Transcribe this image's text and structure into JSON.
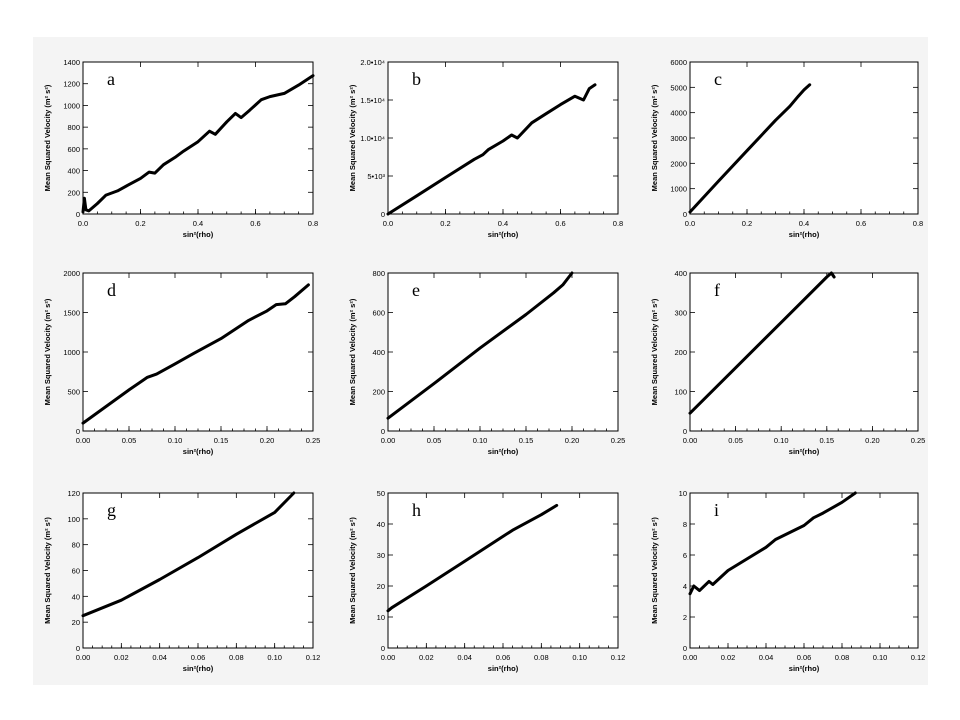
{
  "chart_data": [
    {
      "type": "line",
      "panel_label": "a",
      "xlabel": "sin²(rho)",
      "ylabel": "Mean Squared Velocity (m² s²)",
      "xlim": [
        0,
        0.8
      ],
      "ylim": [
        0,
        1450
      ],
      "xticks": [
        "0.0",
        "0.2",
        "0.4",
        "0.6",
        "0.8"
      ],
      "yticks": [
        "0",
        "200",
        "400",
        "600",
        "800",
        "1000",
        "1200",
        "1400"
      ],
      "series": [
        {
          "x": [
            0,
            0.005,
            0.01,
            0.02,
            0.05,
            0.08,
            0.12,
            0.16,
            0.2,
            0.23,
            0.25,
            0.28,
            0.32,
            0.35,
            0.4,
            0.44,
            0.46,
            0.5,
            0.53,
            0.55,
            0.58,
            0.62,
            0.65,
            0.7,
            0.75,
            0.8
          ],
          "y": [
            20,
            150,
            40,
            30,
            100,
            180,
            220,
            280,
            340,
            400,
            390,
            470,
            540,
            600,
            690,
            790,
            760,
            880,
            960,
            920,
            990,
            1090,
            1120,
            1150,
            1230,
            1320
          ]
        }
      ]
    },
    {
      "type": "line",
      "panel_label": "b",
      "xlabel": "sin²(rho)",
      "ylabel": "Mean Squared Velocity (m² s²)",
      "xlim": [
        0,
        0.8
      ],
      "ylim": [
        0,
        20000
      ],
      "xticks": [
        "0.0",
        "0.2",
        "0.4",
        "0.6",
        "0.8"
      ],
      "yticks": [
        "0",
        "5•10³",
        "1.0•10⁴",
        "1.5•10⁴",
        "2.0•10⁴"
      ],
      "series": [
        {
          "x": [
            0,
            0.1,
            0.2,
            0.3,
            0.33,
            0.35,
            0.4,
            0.43,
            0.45,
            0.5,
            0.55,
            0.6,
            0.65,
            0.68,
            0.7,
            0.72
          ],
          "y": [
            0,
            2400,
            4800,
            7200,
            7800,
            8500,
            9600,
            10400,
            10000,
            12000,
            13200,
            14400,
            15500,
            15000,
            16500,
            17000
          ]
        }
      ]
    },
    {
      "type": "line",
      "panel_label": "c",
      "xlabel": "sin²(rho)",
      "ylabel": "Mean Squared Velocity (m² s²)",
      "xlim": [
        0,
        0.8
      ],
      "ylim": [
        0,
        6000
      ],
      "xticks": [
        "0.0",
        "0.2",
        "0.4",
        "0.6",
        "0.8"
      ],
      "yticks": [
        "0",
        "1000",
        "2000",
        "3000",
        "4000",
        "5000",
        "6000"
      ],
      "series": [
        {
          "x": [
            0,
            0.1,
            0.2,
            0.3,
            0.35,
            0.38,
            0.4,
            0.41,
            0.42
          ],
          "y": [
            80,
            1300,
            2500,
            3700,
            4250,
            4650,
            4900,
            5000,
            5100
          ]
        }
      ]
    },
    {
      "type": "line",
      "panel_label": "d",
      "xlabel": "sin²(rho)",
      "ylabel": "Mean Squared Velocity (m² s²)",
      "xlim": [
        0,
        0.25
      ],
      "ylim": [
        0,
        2000
      ],
      "xticks": [
        "0.00",
        "0.05",
        "0.10",
        "0.15",
        "0.20",
        "0.25"
      ],
      "yticks": [
        "0",
        "500",
        "1000",
        "1500",
        "2000"
      ],
      "series": [
        {
          "x": [
            0,
            0.05,
            0.07,
            0.08,
            0.1,
            0.12,
            0.15,
            0.18,
            0.2,
            0.21,
            0.22,
            0.23,
            0.245
          ],
          "y": [
            100,
            520,
            680,
            720,
            850,
            980,
            1170,
            1400,
            1520,
            1600,
            1610,
            1700,
            1850
          ]
        }
      ]
    },
    {
      "type": "line",
      "panel_label": "e",
      "xlabel": "sin²(rho)",
      "ylabel": "Mean Squared Velocity (m² s²)",
      "xlim": [
        0,
        0.25
      ],
      "ylim": [
        0,
        800
      ],
      "xticks": [
        "0.00",
        "0.05",
        "0.10",
        "0.15",
        "0.20",
        "0.25"
      ],
      "yticks": [
        "0",
        "200",
        "400",
        "600",
        "800"
      ],
      "series": [
        {
          "x": [
            0,
            0.05,
            0.1,
            0.15,
            0.18,
            0.19,
            0.2
          ],
          "y": [
            65,
            240,
            420,
            590,
            700,
            740,
            800
          ]
        }
      ]
    },
    {
      "type": "line",
      "panel_label": "f",
      "xlabel": "sin²(rho)",
      "ylabel": "Mean Squared Velocity (m² s²)",
      "xlim": [
        0,
        0.25
      ],
      "ylim": [
        0,
        400
      ],
      "xticks": [
        "0.00",
        "0.05",
        "0.10",
        "0.15",
        "0.20",
        "0.25"
      ],
      "yticks": [
        "0",
        "100",
        "200",
        "300",
        "400"
      ],
      "series": [
        {
          "x": [
            0,
            0.05,
            0.1,
            0.15,
            0.155,
            0.158
          ],
          "y": [
            45,
            160,
            275,
            390,
            400,
            390
          ]
        }
      ]
    },
    {
      "type": "line",
      "panel_label": "g",
      "xlabel": "sin²(rho)",
      "ylabel": "Mean Squared Velocity (m² s²)",
      "xlim": [
        0,
        0.12
      ],
      "ylim": [
        0,
        120
      ],
      "xticks": [
        "0.00",
        "0.02",
        "0.04",
        "0.06",
        "0.08",
        "0.10",
        "0.12"
      ],
      "yticks": [
        "0",
        "20",
        "40",
        "60",
        "80",
        "100",
        "120"
      ],
      "series": [
        {
          "x": [
            0,
            0.005,
            0.02,
            0.04,
            0.06,
            0.08,
            0.1,
            0.11
          ],
          "y": [
            25,
            28,
            37,
            53,
            70,
            88,
            105,
            120
          ]
        }
      ]
    },
    {
      "type": "line",
      "panel_label": "h",
      "xlabel": "sin²(rho)",
      "ylabel": "Mean Squared Velocity (m² s²)",
      "xlim": [
        0,
        0.12
      ],
      "ylim": [
        0,
        50
      ],
      "xticks": [
        "0.00",
        "0.02",
        "0.04",
        "0.06",
        "0.08",
        "0.10",
        "0.12"
      ],
      "yticks": [
        "0",
        "10",
        "20",
        "30",
        "40",
        "50"
      ],
      "series": [
        {
          "x": [
            0,
            0.002,
            0.02,
            0.04,
            0.06,
            0.065,
            0.08,
            0.088
          ],
          "y": [
            12,
            13,
            20,
            28,
            36,
            38,
            43,
            46
          ]
        }
      ]
    },
    {
      "type": "line",
      "panel_label": "i",
      "xlabel": "sin²(rho)",
      "ylabel": "Mean Squared Velocity (m² s²)",
      "xlim": [
        0,
        0.12
      ],
      "ylim": [
        0,
        10
      ],
      "xticks": [
        "0.00",
        "0.02",
        "0.04",
        "0.06",
        "0.08",
        "0.10",
        "0.12"
      ],
      "yticks": [
        "0",
        "2",
        "4",
        "6",
        "8",
        "10"
      ],
      "series": [
        {
          "x": [
            0,
            0.002,
            0.005,
            0.01,
            0.012,
            0.02,
            0.04,
            0.045,
            0.06,
            0.065,
            0.07,
            0.08,
            0.087
          ],
          "y": [
            3.5,
            4.0,
            3.7,
            4.3,
            4.1,
            5.0,
            6.5,
            7.0,
            7.9,
            8.4,
            8.7,
            9.4,
            10.0
          ]
        }
      ]
    }
  ]
}
